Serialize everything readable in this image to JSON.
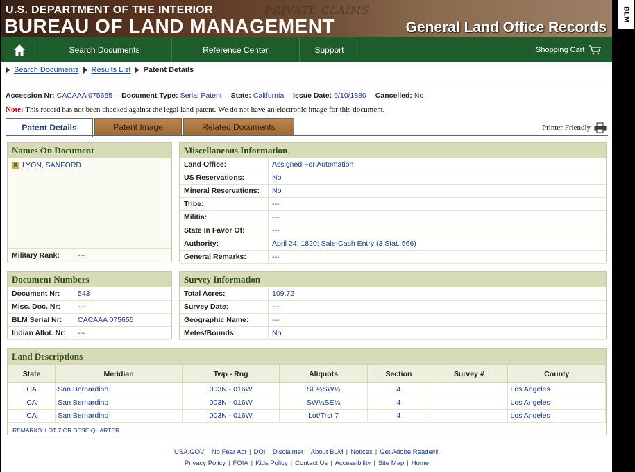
{
  "banner": {
    "dept": "U.S. DEPARTMENT OF THE INTERIOR",
    "bureau": "BUREAU OF LAND MANAGEMENT",
    "records": "General Land Office Records",
    "watermark": "PRIVATE CLAIMS"
  },
  "side_tab": "BLM",
  "nav": {
    "home_icon": "home-icon",
    "items": [
      "Search Documents",
      "Reference Center",
      "Support"
    ],
    "cart": "Shopping Cart",
    "cart_icon": "cart-icon"
  },
  "breadcrumb": [
    "Search Documents",
    "Results List",
    "Patent Details"
  ],
  "record": {
    "accession_label": "Accession Nr:",
    "accession": "CACAAA 075655",
    "doctype_label": "Document Type:",
    "doctype": "Serial Patent",
    "state_label": "State:",
    "state": "California",
    "issue_label": "Issue Date:",
    "issue": "9/10/1880",
    "cancelled_label": "Cancelled:",
    "cancelled": "No"
  },
  "note": {
    "label": "Note:",
    "text": "This record has not been checked against the legal land patent. We do not have an electronic image for this document."
  },
  "tabs": [
    "Patent Details",
    "Patent Image",
    "Related Documents"
  ],
  "printer": "Printer Friendly",
  "names": {
    "title": "Names On Document",
    "badge": "P",
    "name": "LYON, SANFORD",
    "rank_label": "Military Rank:",
    "rank": "---"
  },
  "misc": {
    "title": "Miscellaneous Information",
    "rows": [
      {
        "k": "Land Office:",
        "v": "Assigned For Automation"
      },
      {
        "k": "US Reservations:",
        "v": "No"
      },
      {
        "k": "Mineral Reservations:",
        "v": "No"
      },
      {
        "k": "Tribe:",
        "v": "---"
      },
      {
        "k": "Militia:",
        "v": "---"
      },
      {
        "k": "State In Favor Of:",
        "v": "---"
      },
      {
        "k": "Authority:",
        "v": "April 24, 1820: Sale-Cash Entry (3 Stat. 566)"
      },
      {
        "k": "General Remarks:",
        "v": "---"
      }
    ]
  },
  "docnums": {
    "title": "Document Numbers",
    "rows": [
      {
        "k": "Document Nr:",
        "v": "543"
      },
      {
        "k": "Misc. Doc. Nr:",
        "v": "---"
      },
      {
        "k": "BLM Serial Nr:",
        "v": "CACAAA 075655"
      },
      {
        "k": "Indian Allot. Nr:",
        "v": "---"
      }
    ]
  },
  "survey": {
    "title": "Survey Information",
    "rows": [
      {
        "k": "Total Acres:",
        "v": "109.72"
      },
      {
        "k": "Survey Date:",
        "v": "---"
      },
      {
        "k": "Geographic Name:",
        "v": "---"
      },
      {
        "k": "Metes/Bounds:",
        "v": "No"
      }
    ]
  },
  "land": {
    "title": "Land Descriptions",
    "headers": [
      "State",
      "Meridian",
      "Twp - Rng",
      "Aliquots",
      "Section",
      "Survey #",
      "County"
    ],
    "rows": [
      [
        "CA",
        "San Bernardino",
        "003N - 016W",
        "SE¼SW¼",
        "4",
        "",
        "Los Angeles"
      ],
      [
        "CA",
        "San Bernardino",
        "003N - 016W",
        "SW¼SE¼",
        "4",
        "",
        "Los Angeles"
      ],
      [
        "CA",
        "San Bernardino",
        "003N - 016W",
        "Lot/Trct 7",
        "4",
        "",
        "Los Angeles"
      ]
    ],
    "remarks": "REMARKS: LOT 7 OR SESE QUARTER"
  },
  "footer": {
    "row1": [
      "USA.GOV",
      "No Fear Act",
      "DOI",
      "Disclaimer",
      "About BLM",
      "Notices",
      "Get Adobe Reader®"
    ],
    "row2": [
      "Privacy Policy",
      "FOIA",
      "Kids Policy",
      "Contact Us",
      "Accessibility",
      "Site Map",
      "Home"
    ]
  }
}
